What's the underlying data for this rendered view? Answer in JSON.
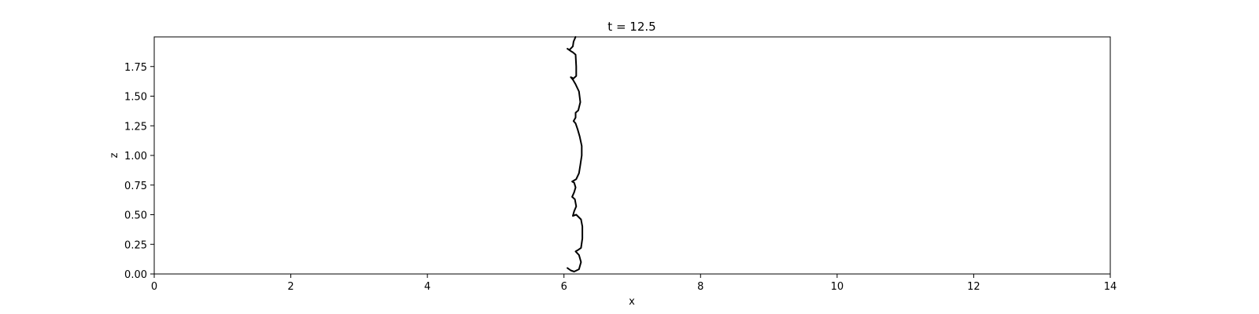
{
  "chart_data": {
    "type": "line",
    "title": "t = 12.5",
    "xlabel": "x",
    "ylabel": "z",
    "xlim": [
      0,
      14
    ],
    "ylim": [
      0,
      2.0
    ],
    "x_ticks": [
      "0",
      "2",
      "4",
      "6",
      "8",
      "10",
      "12",
      "14"
    ],
    "y_ticks": [
      "0.00",
      "0.25",
      "0.50",
      "0.75",
      "1.00",
      "1.25",
      "1.50",
      "1.75"
    ],
    "grid": false,
    "line_color": "#000000",
    "series": [
      {
        "points": [
          [
            6.05,
            0.05
          ],
          [
            6.1,
            0.03
          ],
          [
            6.15,
            0.02
          ],
          [
            6.22,
            0.04
          ],
          [
            6.25,
            0.1
          ],
          [
            6.22,
            0.16
          ],
          [
            6.17,
            0.19
          ],
          [
            6.2,
            0.2
          ],
          [
            6.25,
            0.22
          ],
          [
            6.27,
            0.3
          ],
          [
            6.27,
            0.4
          ],
          [
            6.25,
            0.46
          ],
          [
            6.18,
            0.5
          ],
          [
            6.13,
            0.49
          ],
          [
            6.15,
            0.53
          ],
          [
            6.18,
            0.57
          ],
          [
            6.16,
            0.63
          ],
          [
            6.12,
            0.65
          ],
          [
            6.15,
            0.69
          ],
          [
            6.17,
            0.73
          ],
          [
            6.15,
            0.77
          ],
          [
            6.12,
            0.78
          ],
          [
            6.18,
            0.8
          ],
          [
            6.22,
            0.85
          ],
          [
            6.24,
            0.92
          ],
          [
            6.26,
            1.0
          ],
          [
            6.26,
            1.08
          ],
          [
            6.23,
            1.16
          ],
          [
            6.2,
            1.22
          ],
          [
            6.17,
            1.27
          ],
          [
            6.14,
            1.29
          ],
          [
            6.17,
            1.32
          ],
          [
            6.17,
            1.36
          ],
          [
            6.21,
            1.38
          ],
          [
            6.24,
            1.45
          ],
          [
            6.22,
            1.54
          ],
          [
            6.17,
            1.6
          ],
          [
            6.13,
            1.64
          ],
          [
            6.1,
            1.66
          ],
          [
            6.14,
            1.65
          ],
          [
            6.18,
            1.67
          ],
          [
            6.18,
            1.75
          ],
          [
            6.17,
            1.85
          ],
          [
            6.13,
            1.87
          ],
          [
            6.1,
            1.88
          ],
          [
            6.05,
            1.9
          ],
          [
            6.08,
            1.89
          ],
          [
            6.13,
            1.92
          ],
          [
            6.14,
            1.96
          ],
          [
            6.17,
            2.0
          ]
        ]
      }
    ]
  }
}
